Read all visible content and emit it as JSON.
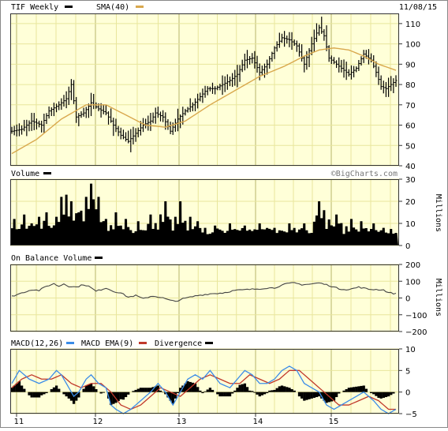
{
  "header": {
    "title": "TIF Weekly",
    "date": "11/08/15"
  },
  "footer": {
    "watermark": "©BigCharts.com"
  },
  "colors": {
    "panel_bg": "#FFFFD8",
    "grid": "#E8E69C",
    "sma": "#D9A84E",
    "macd": "#3B8CE8",
    "macd_ema": "#C0392B",
    "price": "#000000",
    "volume": "#000000"
  },
  "chart_data": [
    {
      "type": "ohlc",
      "title": "TIF Weekly",
      "legend": [
        {
          "name": "TIF Weekly",
          "color": "#000000"
        },
        {
          "name": "SMA(40)",
          "color": "#D9A84E"
        }
      ],
      "ylim": [
        40,
        115
      ],
      "yticks": [
        40,
        50,
        60,
        70,
        80,
        90,
        100,
        110
      ],
      "x_tick_labels": [
        "11",
        "12",
        "13",
        "14",
        "15"
      ],
      "close_keypoints": [
        [
          0,
          57
        ],
        [
          4,
          58
        ],
        [
          8,
          62
        ],
        [
          12,
          60
        ],
        [
          15,
          67
        ],
        [
          19,
          70
        ],
        [
          22,
          73
        ],
        [
          24,
          80
        ],
        [
          26,
          64
        ],
        [
          29,
          66
        ],
        [
          32,
          71
        ],
        [
          35,
          68
        ],
        [
          38,
          66
        ],
        [
          41,
          60
        ],
        [
          44,
          55
        ],
        [
          47,
          52
        ],
        [
          50,
          56
        ],
        [
          53,
          60
        ],
        [
          56,
          62
        ],
        [
          58,
          66
        ],
        [
          61,
          64
        ],
        [
          64,
          57
        ],
        [
          67,
          63
        ],
        [
          70,
          67
        ],
        [
          73,
          70
        ],
        [
          76,
          74
        ],
        [
          79,
          78
        ],
        [
          82,
          78
        ],
        [
          85,
          80
        ],
        [
          88,
          82
        ],
        [
          91,
          85
        ],
        [
          94,
          92
        ],
        [
          97,
          93
        ],
        [
          100,
          86
        ],
        [
          103,
          90
        ],
        [
          106,
          98
        ],
        [
          109,
          103
        ],
        [
          112,
          102
        ],
        [
          115,
          99
        ],
        [
          118,
          90
        ],
        [
          121,
          100
        ],
        [
          124,
          108
        ],
        [
          126,
          104
        ],
        [
          128,
          93
        ],
        [
          130,
          91
        ],
        [
          133,
          88
        ],
        [
          136,
          85
        ],
        [
          139,
          88
        ],
        [
          142,
          95
        ],
        [
          145,
          92
        ],
        [
          147,
          86
        ],
        [
          149,
          79
        ],
        [
          151,
          78
        ],
        [
          153,
          80
        ],
        [
          155,
          82
        ]
      ],
      "sma40_keypoints": [
        [
          0,
          46
        ],
        [
          10,
          53
        ],
        [
          20,
          63
        ],
        [
          30,
          70
        ],
        [
          38,
          70
        ],
        [
          46,
          65
        ],
        [
          54,
          60
        ],
        [
          62,
          59
        ],
        [
          70,
          62
        ],
        [
          80,
          70
        ],
        [
          90,
          77
        ],
        [
          100,
          84
        ],
        [
          110,
          89
        ],
        [
          118,
          94
        ],
        [
          124,
          97
        ],
        [
          130,
          98
        ],
        [
          136,
          97
        ],
        [
          142,
          94
        ],
        [
          148,
          90
        ],
        [
          155,
          87
        ]
      ]
    },
    {
      "type": "bar",
      "title": "Volume",
      "ylabel": "Millions",
      "ylim": [
        0,
        30
      ],
      "yticks": [
        0,
        10,
        20,
        30
      ],
      "baseline": 5,
      "spikes": [
        [
          1,
          12
        ],
        [
          5,
          14
        ],
        [
          8,
          10
        ],
        [
          11,
          13
        ],
        [
          14,
          15
        ],
        [
          18,
          13
        ],
        [
          20,
          22
        ],
        [
          22,
          23
        ],
        [
          24,
          20
        ],
        [
          27,
          15
        ],
        [
          30,
          22
        ],
        [
          32,
          28
        ],
        [
          35,
          22
        ],
        [
          38,
          12
        ],
        [
          42,
          15
        ],
        [
          46,
          12
        ],
        [
          51,
          11
        ],
        [
          56,
          14
        ],
        [
          60,
          10
        ],
        [
          62,
          20
        ],
        [
          66,
          13
        ],
        [
          68,
          20
        ],
        [
          72,
          13
        ],
        [
          75,
          11
        ],
        [
          82,
          9
        ],
        [
          88,
          10
        ],
        [
          94,
          9
        ],
        [
          100,
          10
        ],
        [
          106,
          8
        ],
        [
          112,
          10
        ],
        [
          118,
          10
        ],
        [
          124,
          20
        ],
        [
          126,
          16
        ],
        [
          131,
          14
        ],
        [
          137,
          12
        ],
        [
          141,
          11
        ],
        [
          146,
          10
        ],
        [
          150,
          8
        ]
      ]
    },
    {
      "type": "line",
      "title": "On Balance Volume",
      "ylabel": "Millions",
      "ylim": [
        -200,
        200
      ],
      "yticks": [
        200,
        100,
        0,
        -100,
        -200
      ],
      "keypoints": [
        [
          0,
          10
        ],
        [
          4,
          30
        ],
        [
          8,
          50
        ],
        [
          11,
          45
        ],
        [
          14,
          70
        ],
        [
          17,
          85
        ],
        [
          19,
          70
        ],
        [
          21,
          85
        ],
        [
          23,
          70
        ],
        [
          26,
          65
        ],
        [
          29,
          80
        ],
        [
          31,
          70
        ],
        [
          34,
          40
        ],
        [
          38,
          60
        ],
        [
          41,
          40
        ],
        [
          44,
          30
        ],
        [
          47,
          5
        ],
        [
          50,
          15
        ],
        [
          53,
          -5
        ],
        [
          56,
          10
        ],
        [
          58,
          10
        ],
        [
          61,
          0
        ],
        [
          64,
          -15
        ],
        [
          66,
          -20
        ],
        [
          69,
          -5
        ],
        [
          72,
          5
        ],
        [
          75,
          15
        ],
        [
          80,
          25
        ],
        [
          85,
          30
        ],
        [
          90,
          45
        ],
        [
          95,
          50
        ],
        [
          100,
          55
        ],
        [
          103,
          60
        ],
        [
          106,
          60
        ],
        [
          108,
          72
        ],
        [
          111,
          85
        ],
        [
          114,
          90
        ],
        [
          117,
          80
        ],
        [
          120,
          82
        ],
        [
          124,
          90
        ],
        [
          128,
          75
        ],
        [
          132,
          55
        ],
        [
          136,
          50
        ],
        [
          140,
          65
        ],
        [
          144,
          52
        ],
        [
          148,
          50
        ],
        [
          150,
          48
        ],
        [
          152,
          32
        ],
        [
          155,
          25
        ]
      ]
    },
    {
      "type": "line",
      "title": "MACD(12,26)",
      "legend": [
        {
          "name": "MACD(12,26)",
          "color": "#3B8CE8"
        },
        {
          "name": "MACD EMA(9)",
          "color": "#C0392B"
        },
        {
          "name": "Divergence",
          "color": "#000000"
        }
      ],
      "ylim": [
        -5,
        10
      ],
      "yticks": [
        10,
        5,
        0,
        -5
      ],
      "macd_keypoints": [
        [
          0,
          2
        ],
        [
          3,
          5
        ],
        [
          7,
          3
        ],
        [
          11,
          2
        ],
        [
          15,
          3
        ],
        [
          18,
          5
        ],
        [
          20,
          4
        ],
        [
          23,
          1
        ],
        [
          25,
          -1
        ],
        [
          27,
          0
        ],
        [
          30,
          3
        ],
        [
          32,
          4
        ],
        [
          35,
          2
        ],
        [
          38,
          1
        ],
        [
          40,
          -3
        ],
        [
          42,
          -4
        ],
        [
          45,
          -5
        ],
        [
          48,
          -4
        ],
        [
          52,
          -2
        ],
        [
          56,
          0
        ],
        [
          59,
          2
        ],
        [
          62,
          0
        ],
        [
          65,
          -3
        ],
        [
          68,
          0
        ],
        [
          71,
          3
        ],
        [
          74,
          4
        ],
        [
          77,
          3
        ],
        [
          80,
          5
        ],
        [
          84,
          2
        ],
        [
          88,
          1
        ],
        [
          91,
          3
        ],
        [
          94,
          5
        ],
        [
          97,
          4
        ],
        [
          100,
          2
        ],
        [
          103,
          2
        ],
        [
          106,
          3
        ],
        [
          109,
          5
        ],
        [
          112,
          6
        ],
        [
          115,
          5
        ],
        [
          118,
          2
        ],
        [
          121,
          1
        ],
        [
          124,
          0
        ],
        [
          127,
          -3
        ],
        [
          130,
          -4
        ],
        [
          133,
          -3
        ],
        [
          136,
          -2
        ],
        [
          139,
          -1
        ],
        [
          142,
          0
        ],
        [
          146,
          -2
        ],
        [
          149,
          -4
        ],
        [
          152,
          -5
        ],
        [
          155,
          -4
        ]
      ],
      "ema_keypoints": [
        [
          0,
          1
        ],
        [
          4,
          3
        ],
        [
          8,
          4
        ],
        [
          12,
          3
        ],
        [
          16,
          3
        ],
        [
          20,
          4
        ],
        [
          24,
          2
        ],
        [
          28,
          1
        ],
        [
          32,
          2
        ],
        [
          36,
          2
        ],
        [
          40,
          0
        ],
        [
          44,
          -3
        ],
        [
          48,
          -4
        ],
        [
          52,
          -3
        ],
        [
          56,
          -1
        ],
        [
          60,
          1
        ],
        [
          64,
          0
        ],
        [
          68,
          -1
        ],
        [
          72,
          1
        ],
        [
          76,
          3
        ],
        [
          80,
          4
        ],
        [
          84,
          3
        ],
        [
          88,
          2
        ],
        [
          92,
          2
        ],
        [
          96,
          4
        ],
        [
          100,
          3
        ],
        [
          104,
          2
        ],
        [
          108,
          3
        ],
        [
          112,
          5
        ],
        [
          116,
          5
        ],
        [
          120,
          3
        ],
        [
          124,
          1
        ],
        [
          128,
          -1
        ],
        [
          132,
          -3
        ],
        [
          136,
          -3
        ],
        [
          140,
          -2
        ],
        [
          144,
          -1
        ],
        [
          148,
          -2
        ],
        [
          152,
          -4
        ],
        [
          155,
          -4
        ]
      ]
    }
  ]
}
